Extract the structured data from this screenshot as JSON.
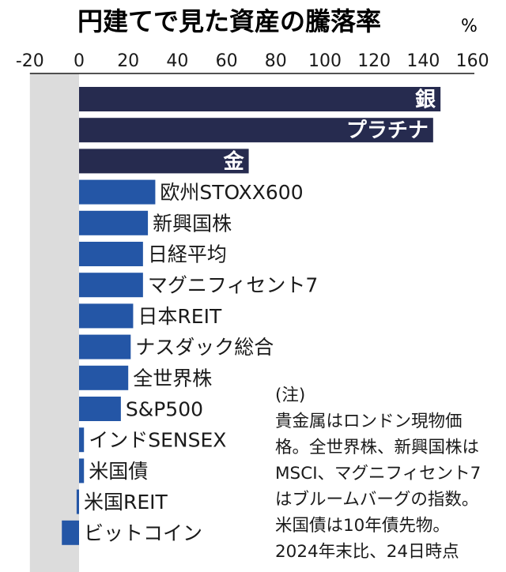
{
  "chart_data": {
    "type": "bar",
    "orientation": "horizontal",
    "title": "円建てで見た資産の騰落率",
    "unit": "%",
    "xlim": [
      -20,
      160
    ],
    "ticks": [
      "-20",
      "0",
      "20",
      "40",
      "60",
      "80",
      "100",
      "120",
      "140",
      "160"
    ],
    "categories": [
      "銀",
      "プラチナ",
      "金",
      "欧州STOXX600",
      "新興国株",
      "日経平均",
      "マグニフィセント7",
      "日本REIT",
      "ナスダック総合",
      "全世界株",
      "S&P500",
      "インドSENSEX",
      "米国債",
      "米国REIT",
      "ビットコイン"
    ],
    "values": [
      147,
      144,
      69,
      31,
      28,
      26,
      26,
      22,
      21,
      20,
      17,
      2,
      2,
      -1,
      -7
    ],
    "label_inside_bar": [
      true,
      true,
      true,
      false,
      false,
      false,
      false,
      false,
      false,
      false,
      false,
      false,
      false,
      false,
      false
    ],
    "colors": {
      "precious_metals": "#262b4f",
      "other_assets": "#2456a6",
      "negative_zone": "#dcdcdc"
    }
  },
  "note": {
    "lines": [
      "(注)",
      "貴金属はロンドン現物価",
      "格。全世界株、新興国株は",
      "MSCI、マグニフィセント7",
      "はブルームバーグの指数。",
      "米国債は10年債先物。",
      "2024年末比、24日時点"
    ]
  }
}
